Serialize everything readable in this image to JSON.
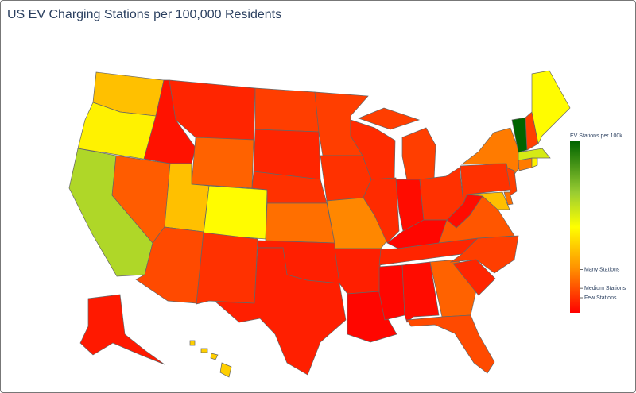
{
  "chart_data": {
    "type": "choropleth",
    "title": "US EV Charging Stations per 100,000 Residents",
    "colorbar_title": "EV Stations per 100k",
    "values": [
      35,
      45,
      62,
      17,
      5,
      8,
      18,
      35,
      47,
      14,
      10,
      12,
      8,
      10,
      20,
      7,
      7,
      12,
      10,
      24,
      7,
      3,
      9,
      12,
      9,
      4,
      10,
      3,
      8,
      3,
      4,
      18,
      14,
      8,
      12,
      16,
      4,
      10,
      22,
      12,
      35,
      20,
      22,
      45,
      55,
      93,
      12,
      47,
      6,
      38
    ],
    "zlim": [
      2,
      93
    ],
    "zticks": [
      {
        "value": 25,
        "label": "Many Stations"
      },
      {
        "value": 15,
        "label": "Medium Stations"
      },
      {
        "value": 10,
        "label": "Few Stations"
      }
    ],
    "colorscale": [
      [
        0,
        "#ff0000"
      ],
      [
        0.25,
        "#ff8c00"
      ],
      [
        0.5,
        "#ffff00"
      ],
      [
        0.7,
        "#9acd32"
      ],
      [
        1,
        "#006400"
      ]
    ]
  }
}
